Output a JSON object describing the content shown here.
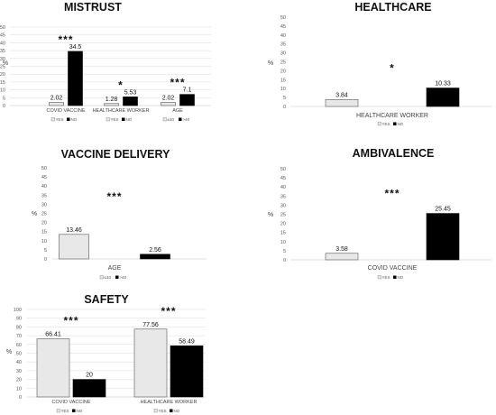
{
  "chart_data": [
    {
      "id": "mistrust",
      "type": "bar",
      "title": "MISTRUST",
      "ylabel": "%",
      "ylim": [
        0,
        50
      ],
      "yticks": [
        0,
        5,
        10,
        15,
        20,
        25,
        30,
        35,
        40,
        45,
        50
      ],
      "groups": [
        {
          "category": "COVID VACCINE",
          "values": [
            2.02,
            34.5
          ],
          "labels": [
            "2.02",
            "34.5"
          ],
          "sig": "***",
          "legend": [
            "YES",
            "NO"
          ]
        },
        {
          "category": "HEALTHCARE WORKER",
          "values": [
            1.28,
            5.53
          ],
          "labels": [
            "1.28",
            "5.53"
          ],
          "sig": "*",
          "legend": [
            "YES",
            "NO"
          ]
        },
        {
          "category": "AGE",
          "values": [
            2.02,
            7.1
          ],
          "labels": [
            "2.02",
            "7.1"
          ],
          "sig": "***",
          "legend": [
            "≤40",
            ">40"
          ]
        }
      ],
      "colors": [
        "#e8e8e8",
        "#000000"
      ],
      "grid": true
    },
    {
      "id": "healthcare",
      "type": "bar",
      "title": "HEALTHCARE",
      "ylabel": "%",
      "ylim": [
        0,
        50
      ],
      "yticks": [
        0,
        5,
        10,
        15,
        20,
        25,
        30,
        35,
        40,
        45,
        50
      ],
      "groups": [
        {
          "category": "HEALTHCARE WORKER",
          "values": [
            3.84,
            10.33
          ],
          "labels": [
            "3.84",
            "10.33"
          ],
          "sig": "*",
          "legend": [
            "YES",
            "NO"
          ]
        }
      ],
      "colors": [
        "#e8e8e8",
        "#000000"
      ],
      "grid": false
    },
    {
      "id": "delivery",
      "type": "bar",
      "title": "VACCINE DELIVERY",
      "ylabel": "%",
      "ylim": [
        0,
        50
      ],
      "yticks": [
        0,
        5,
        10,
        15,
        20,
        25,
        30,
        35,
        40,
        45,
        50
      ],
      "groups": [
        {
          "category": "AGE",
          "values": [
            13.46,
            2.56
          ],
          "labels": [
            "13.46",
            "2.56"
          ],
          "sig": "***",
          "legend": [
            "≤40",
            ">40"
          ]
        }
      ],
      "colors": [
        "#e8e8e8",
        "#000000"
      ],
      "grid": false
    },
    {
      "id": "ambivalence",
      "type": "bar",
      "title": "AMBIVALENCE",
      "ylabel": "%",
      "ylim": [
        0,
        50
      ],
      "yticks": [
        0,
        5,
        10,
        15,
        20,
        25,
        30,
        35,
        40,
        45,
        50
      ],
      "groups": [
        {
          "category": "COVID VACCINE",
          "values": [
            3.58,
            25.45
          ],
          "labels": [
            "3.58",
            "25.45"
          ],
          "sig": "***",
          "legend": [
            "YES",
            "NO"
          ]
        }
      ],
      "colors": [
        "#e8e8e8",
        "#000000"
      ],
      "grid": false
    },
    {
      "id": "safety",
      "type": "bar",
      "title": "SAFETY",
      "ylabel": "%",
      "ylim": [
        0,
        100
      ],
      "yticks": [
        0,
        10,
        20,
        30,
        40,
        50,
        60,
        70,
        80,
        90,
        100
      ],
      "groups": [
        {
          "category": "COVID VACCINE",
          "values": [
            66.41,
            20
          ],
          "labels": [
            "66.41",
            "20"
          ],
          "sig": "***",
          "legend": [
            "YES",
            "NO"
          ]
        },
        {
          "category": "HEALTHCARE WORKER",
          "values": [
            77.56,
            58.49
          ],
          "labels": [
            "77.56",
            "58.49"
          ],
          "sig": "***",
          "legend": [
            "YES",
            "NO"
          ]
        }
      ],
      "colors": [
        "#e8e8e8",
        "#000000"
      ],
      "grid": true
    }
  ]
}
